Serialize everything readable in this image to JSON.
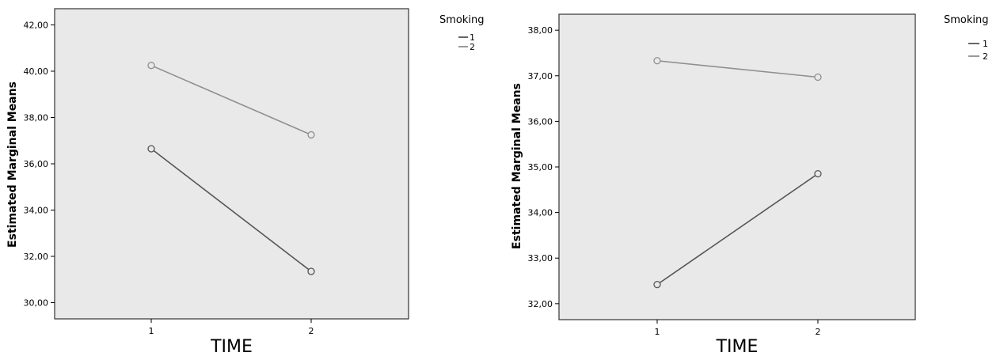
{
  "chart_data": [
    {
      "type": "line",
      "xlabel": "TIME",
      "ylabel": "Estimated Marginal Means",
      "categories": [
        "1",
        "2"
      ],
      "ylim": [
        29.3,
        42.7
      ],
      "yticks": [
        "30,00",
        "32,00",
        "34,00",
        "36,00",
        "38,00",
        "40,00",
        "42,00"
      ],
      "ytick_values": [
        30,
        32,
        34,
        36,
        38,
        40,
        42
      ],
      "grid": false,
      "legend": {
        "title": "Smoking",
        "position": "outside-right"
      },
      "series": [
        {
          "name": "1",
          "values": [
            36.65,
            31.35
          ],
          "color": "#555555"
        },
        {
          "name": "2",
          "values": [
            40.25,
            37.25
          ],
          "color": "#8f8f8f"
        }
      ]
    },
    {
      "type": "line",
      "xlabel": "TIME",
      "ylabel": "Estimated Marginal Means",
      "categories": [
        "1",
        "2"
      ],
      "ylim": [
        31.65,
        38.35
      ],
      "yticks": [
        "32,00",
        "33,00",
        "34,00",
        "35,00",
        "36,00",
        "37,00",
        "38,00"
      ],
      "ytick_values": [
        32,
        33,
        34,
        35,
        36,
        37,
        38
      ],
      "grid": false,
      "legend": {
        "title": "Smoking",
        "position": "outside-right"
      },
      "series": [
        {
          "name": "1",
          "values": [
            32.42,
            34.85
          ],
          "color": "#555555"
        },
        {
          "name": "2",
          "values": [
            37.33,
            36.97
          ],
          "color": "#8f8f8f"
        }
      ]
    }
  ],
  "style": {
    "plot_background": "#e9e9e9",
    "frame_color": "#333333",
    "marker_fill": "#e9e9e9"
  }
}
